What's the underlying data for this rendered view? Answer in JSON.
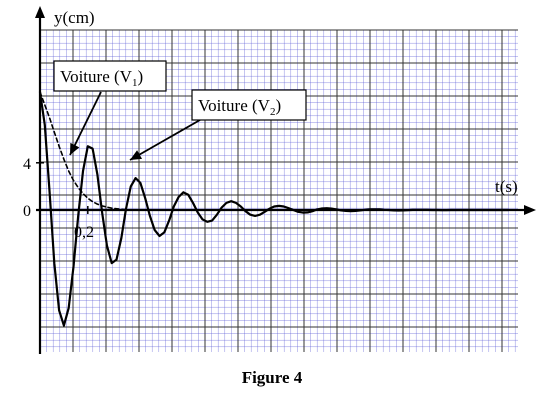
{
  "chart_data": {
    "type": "line",
    "xlabel": "t(s)",
    "ylabel": "y(cm)",
    "x_tick_label": "0,2",
    "y_tick_labels": [
      "4",
      "0"
    ],
    "xlim": [
      0,
      2.0
    ],
    "ylim": [
      -12,
      17
    ],
    "grid": true,
    "series": [
      {
        "name": "Voiture (V1)",
        "style": "dashed",
        "x": [
          0,
          0.02,
          0.04,
          0.06,
          0.08,
          0.1,
          0.12,
          0.14,
          0.16,
          0.18,
          0.2,
          0.22,
          0.24,
          0.26,
          0.28,
          0.3,
          0.34,
          0.38,
          0.42
        ],
        "y": [
          10,
          8.9,
          7.8,
          6.6,
          5.4,
          4.3,
          3.3,
          2.5,
          1.9,
          1.4,
          1.0,
          0.7,
          0.5,
          0.35,
          0.25,
          0.15,
          0.05,
          0.01,
          0
        ]
      },
      {
        "name": "Voiture (V2)",
        "style": "solid",
        "x": [
          0,
          0.02,
          0.04,
          0.06,
          0.08,
          0.1,
          0.12,
          0.14,
          0.16,
          0.18,
          0.2,
          0.22,
          0.24,
          0.26,
          0.28,
          0.3,
          0.32,
          0.34,
          0.36,
          0.38,
          0.4,
          0.42,
          0.44,
          0.46,
          0.48,
          0.5,
          0.52,
          0.54,
          0.56,
          0.58,
          0.6,
          0.62,
          0.64,
          0.66,
          0.68,
          0.7,
          0.72,
          0.74,
          0.76,
          0.78,
          0.8,
          0.82,
          0.84,
          0.86,
          0.88,
          0.9,
          0.92,
          0.94,
          0.96,
          0.98,
          1.0,
          1.02,
          1.04,
          1.06,
          1.08,
          1.1,
          1.12,
          1.14,
          1.16,
          1.18,
          1.2,
          1.22,
          1.24,
          1.26,
          1.28,
          1.3,
          1.32,
          1.34,
          1.36,
          1.38,
          1.4,
          1.42,
          1.44,
          1.46,
          1.48,
          1.5,
          1.52,
          1.54,
          1.56,
          1.58,
          1.6,
          1.62,
          1.64,
          1.66,
          1.68,
          1.7,
          1.72,
          1.74,
          1.76,
          1.78,
          1.8,
          1.82,
          1.84,
          1.86,
          1.88,
          1.9,
          1.92,
          1.94,
          1.96
        ],
        "y": [
          10,
          7.2,
          1.5,
          -4.5,
          -8.5,
          -9.8,
          -8.3,
          -4.8,
          -0.5,
          3.3,
          5.4,
          5.2,
          3.0,
          -0.2,
          -3.0,
          -4.5,
          -4.2,
          -2.4,
          0.1,
          2.0,
          2.7,
          2.3,
          1.0,
          -0.5,
          -1.7,
          -2.2,
          -1.9,
          -0.9,
          0.3,
          1.1,
          1.5,
          1.3,
          0.6,
          -0.2,
          -0.8,
          -1.0,
          -0.9,
          -0.4,
          0.2,
          0.6,
          0.75,
          0.6,
          0.3,
          -0.1,
          -0.4,
          -0.5,
          -0.4,
          -0.15,
          0.1,
          0.3,
          0.35,
          0.3,
          0.15,
          0,
          -0.15,
          -0.22,
          -0.2,
          -0.1,
          0.05,
          0.13,
          0.15,
          0.12,
          0.05,
          -0.03,
          -0.08,
          -0.1,
          -0.08,
          -0.03,
          0.02,
          0.05,
          0.06,
          0.05,
          0.02,
          0,
          -0.03,
          -0.04,
          -0.03,
          -0.01,
          0.01,
          0.02,
          0.02,
          0.01,
          0,
          0,
          -0.01,
          -0.01,
          0,
          0,
          0,
          0,
          0,
          0,
          0,
          0,
          0,
          0,
          0,
          0,
          0
        ]
      }
    ],
    "annotations": [
      "Voiture (V1)",
      "Voiture (V2)"
    ]
  },
  "labels": {
    "v1_text": "Voiture (V",
    "v1_sub": "1",
    "v2_text": "Voiture (V",
    "v2_sub": "2",
    "close": ")"
  },
  "caption": "Figure 4"
}
